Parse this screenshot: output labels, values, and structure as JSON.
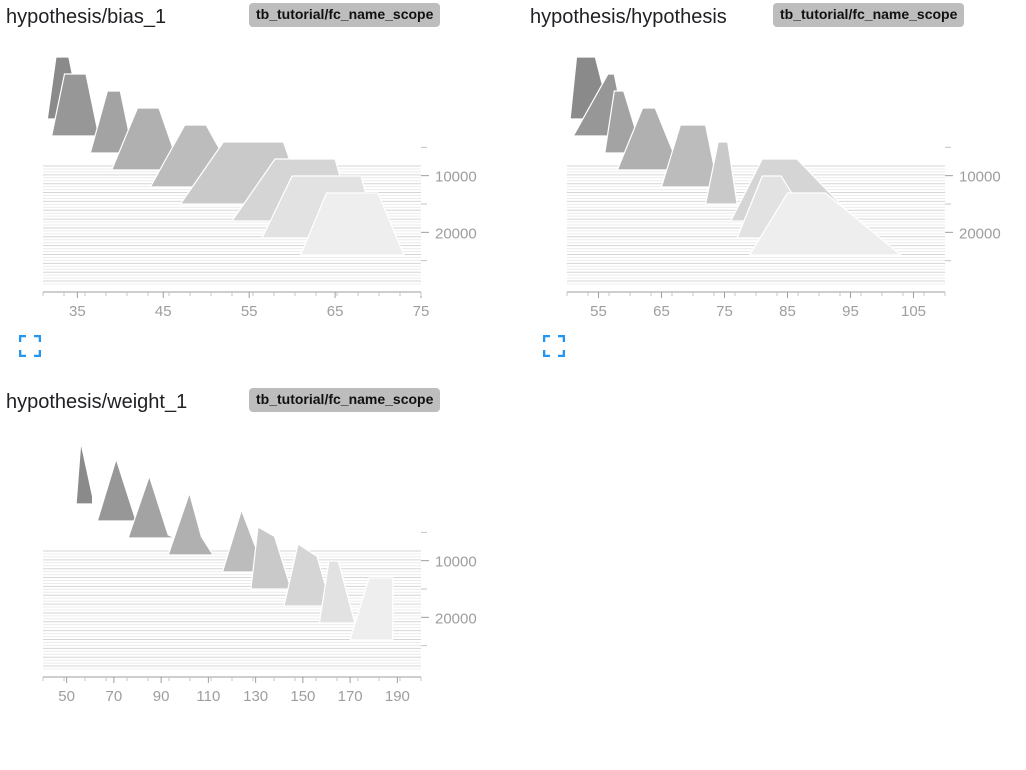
{
  "colors": {
    "expand_icon": "#2196f3",
    "badge_bg": "#bdbdbd",
    "axis": "#9e9e9e"
  },
  "icons": {
    "expand": "fullscreen-expand-icon"
  },
  "cards": [
    {
      "title": "hypothesis/bias_1",
      "run": "tb_tutorial/fc_name_scope"
    },
    {
      "title": "hypothesis/hypothesis",
      "run": "tb_tutorial/fc_name_scope"
    },
    {
      "title": "hypothesis/weight_1",
      "run": "tb_tutorial/fc_name_scope"
    }
  ],
  "chart_data": [
    {
      "type": "area",
      "mode": "offset-histogram",
      "title": "hypothesis/bias_1",
      "x_range": [
        31,
        75
      ],
      "x_ticks": [
        "35",
        "45",
        "55",
        "65",
        "75"
      ],
      "step_ticks": [
        "10000",
        "20000"
      ],
      "series": [
        {
          "step": 0,
          "x": [
            31.5,
            32.5,
            34,
            35.5
          ],
          "y": [
            0,
            1,
            1,
            0
          ]
        },
        {
          "step": 3000,
          "x": [
            32,
            33.5,
            36,
            37.5
          ],
          "y": [
            0,
            1,
            1,
            0
          ]
        },
        {
          "step": 6000,
          "x": [
            36.5,
            38.5,
            40,
            41.5
          ],
          "y": [
            0,
            1,
            1,
            0
          ]
        },
        {
          "step": 9000,
          "x": [
            39,
            42,
            44.5,
            47
          ],
          "y": [
            0,
            1,
            1,
            0
          ]
        },
        {
          "step": 12000,
          "x": [
            43.5,
            47.5,
            50,
            54
          ],
          "y": [
            0,
            1,
            1,
            0
          ]
        },
        {
          "step": 15000,
          "x": [
            47,
            52,
            59,
            61.5
          ],
          "y": [
            0,
            1,
            1,
            0
          ]
        },
        {
          "step": 18000,
          "x": [
            53,
            58,
            65,
            67
          ],
          "y": [
            0,
            1,
            1,
            0
          ]
        },
        {
          "step": 21000,
          "x": [
            56.5,
            60,
            68,
            70
          ],
          "y": [
            0,
            1,
            1,
            0
          ]
        },
        {
          "step": 24000,
          "x": [
            61,
            64,
            70,
            73
          ],
          "y": [
            0,
            1,
            1,
            0
          ]
        }
      ]
    },
    {
      "type": "area",
      "mode": "offset-histogram",
      "title": "hypothesis/hypothesis",
      "x_range": [
        50,
        110
      ],
      "x_ticks": [
        "55",
        "65",
        "75",
        "85",
        "95",
        "105"
      ],
      "step_ticks": [
        "10000",
        "20000"
      ],
      "series": [
        {
          "step": 0,
          "x": [
            50.5,
            51.5,
            54.5,
            57
          ],
          "y": [
            0,
            1,
            1,
            0
          ]
        },
        {
          "step": 3000,
          "x": [
            51,
            56.5,
            57.5,
            59.5
          ],
          "y": [
            0,
            1,
            1,
            0
          ]
        },
        {
          "step": 6000,
          "x": [
            56,
            57.5,
            59,
            62
          ],
          "y": [
            0,
            1,
            1,
            0
          ]
        },
        {
          "step": 9000,
          "x": [
            58,
            62,
            64,
            68
          ],
          "y": [
            0,
            1,
            1,
            0
          ]
        },
        {
          "step": 12000,
          "x": [
            65,
            68,
            72,
            74
          ],
          "y": [
            0,
            1,
            1,
            0
          ]
        },
        {
          "step": 15000,
          "x": [
            72,
            74,
            75.5,
            77
          ],
          "y": [
            0,
            1,
            1,
            0
          ]
        },
        {
          "step": 18000,
          "x": [
            76,
            81,
            86.5,
            96
          ],
          "y": [
            0,
            1,
            1,
            0
          ]
        },
        {
          "step": 21000,
          "x": [
            77,
            81,
            84,
            90
          ],
          "y": [
            0,
            1,
            1,
            0
          ]
        },
        {
          "step": 24000,
          "x": [
            79,
            85,
            91,
            103
          ],
          "y": [
            0,
            1,
            1,
            0
          ]
        }
      ]
    },
    {
      "type": "area",
      "mode": "offset-histogram",
      "title": "hypothesis/weight_1",
      "x_range": [
        40,
        200
      ],
      "x_ticks": [
        "50",
        "70",
        "90",
        "110",
        "130",
        "150",
        "170",
        "190"
      ],
      "step_ticks": [
        "10000",
        "20000"
      ],
      "series": [
        {
          "step": 0,
          "x": [
            54,
            56,
            61,
            61
          ],
          "y": [
            0,
            1,
            0.12,
            0
          ]
        },
        {
          "step": 3000,
          "x": [
            63,
            71,
            79,
            79
          ],
          "y": [
            0,
            1,
            0.05,
            0
          ]
        },
        {
          "step": 6000,
          "x": [
            76,
            85,
            93,
            96
          ],
          "y": [
            0,
            1,
            0.05,
            0
          ]
        },
        {
          "step": 9000,
          "x": [
            93,
            102,
            107,
            112
          ],
          "y": [
            0,
            1,
            0.3,
            0
          ]
        },
        {
          "step": 12000,
          "x": [
            116,
            124,
            131,
            133
          ],
          "y": [
            0,
            1,
            0.3,
            0
          ]
        },
        {
          "step": 15000,
          "x": [
            128,
            131,
            138,
            145
          ],
          "y": [
            0,
            1,
            0.85,
            0
          ]
        },
        {
          "step": 18000,
          "x": [
            142,
            148,
            156,
            162
          ],
          "y": [
            0,
            1,
            0.8,
            0
          ]
        },
        {
          "step": 21000,
          "x": [
            157,
            161,
            165,
            172
          ],
          "y": [
            0,
            1,
            1,
            0
          ]
        },
        {
          "step": 24000,
          "x": [
            170,
            178,
            188,
            188
          ],
          "y": [
            0,
            1,
            1,
            0
          ]
        }
      ]
    }
  ]
}
